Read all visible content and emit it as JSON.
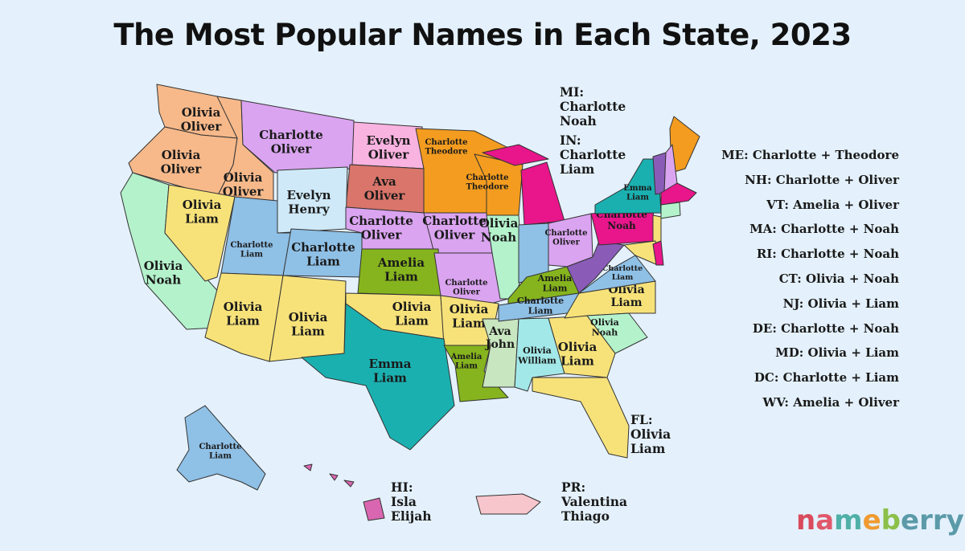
{
  "title": "The Most Popular Names in Each State, 2023",
  "colors": {
    "background": "#e4f1fc"
  },
  "states": [
    {
      "abbr": "WA",
      "lines": [
        "Olivia",
        "Oliver"
      ],
      "color": "#f7b98a"
    },
    {
      "abbr": "OR",
      "lines": [
        "Olivia",
        "Oliver"
      ],
      "color": "#f7b98a"
    },
    {
      "abbr": "ID",
      "lines": [
        "Olivia",
        "Oliver"
      ],
      "color": "#f7b98a"
    },
    {
      "abbr": "MT",
      "lines": [
        "Charlotte",
        "Oliver"
      ],
      "color": "#daa4f0"
    },
    {
      "abbr": "ND",
      "lines": [
        "Evelyn",
        "Oliver"
      ],
      "color": "#f9b3e0"
    },
    {
      "abbr": "SD",
      "lines": [
        "Ava",
        "Oliver"
      ],
      "color": "#d9756a"
    },
    {
      "abbr": "MN",
      "lines": [
        "Charlotte",
        "Theodore"
      ],
      "color": "#f39c1f"
    },
    {
      "abbr": "WI",
      "lines": [
        "Charlotte",
        "Theodore"
      ],
      "color": "#f39c1f"
    },
    {
      "abbr": "WY",
      "lines": [
        "Evelyn",
        "Henry"
      ],
      "color": "#cfe9f8"
    },
    {
      "abbr": "CA",
      "lines": [
        "Olivia",
        "Noah"
      ],
      "color": "#b4f2cc"
    },
    {
      "abbr": "NV",
      "lines": [
        "Olivia",
        "Liam"
      ],
      "color": "#f7e27a"
    },
    {
      "abbr": "UT",
      "lines": [
        "Charlotte",
        "Liam"
      ],
      "color": "#8fc0e6"
    },
    {
      "abbr": "CO",
      "lines": [
        "Charlotte",
        "Liam"
      ],
      "color": "#8fc0e6"
    },
    {
      "abbr": "NE",
      "lines": [
        "Charlotte",
        "Oliver"
      ],
      "color": "#daa4f0"
    },
    {
      "abbr": "IA",
      "lines": [
        "Charlotte",
        "Oliver"
      ],
      "color": "#daa4f0"
    },
    {
      "abbr": "KS",
      "lines": [
        "Amelia",
        "Liam"
      ],
      "color": "#86b41e"
    },
    {
      "abbr": "MO",
      "lines": [
        "Charlotte",
        "Oliver"
      ],
      "color": "#daa4f0"
    },
    {
      "abbr": "IL",
      "lines": [
        "Olivia",
        "Noah"
      ],
      "color": "#b4f2cc"
    },
    {
      "abbr": "MI",
      "lines": [],
      "color": "#e8158b"
    },
    {
      "abbr": "IN",
      "lines": [],
      "color": "#8fc0e6"
    },
    {
      "abbr": "OH",
      "lines": [
        "Charlotte",
        "Oliver"
      ],
      "color": "#daa4f0"
    },
    {
      "abbr": "AZ",
      "lines": [
        "Olivia",
        "Liam"
      ],
      "color": "#f7e27a"
    },
    {
      "abbr": "NM",
      "lines": [
        "Olivia",
        "Liam"
      ],
      "color": "#f7e27a"
    },
    {
      "abbr": "OK",
      "lines": [
        "Olivia",
        "Liam"
      ],
      "color": "#f7e27a"
    },
    {
      "abbr": "AR",
      "lines": [
        "Olivia",
        "Liam"
      ],
      "color": "#f7e27a"
    },
    {
      "abbr": "TX",
      "lines": [
        "Emma",
        "Liam"
      ],
      "color": "#1bb0b0"
    },
    {
      "abbr": "LA",
      "lines": [
        "Amelia",
        "Liam"
      ],
      "color": "#86b41e"
    },
    {
      "abbr": "MS",
      "lines": [
        "Ava",
        "John"
      ],
      "color": "#c8e6c0"
    },
    {
      "abbr": "AL",
      "lines": [
        "Olivia",
        "William"
      ],
      "color": "#a3e8e8"
    },
    {
      "abbr": "GA",
      "lines": [
        "Olivia",
        "Liam"
      ],
      "color": "#f7e27a"
    },
    {
      "abbr": "FL",
      "lines": [],
      "color": "#f7e27a"
    },
    {
      "abbr": "KY",
      "lines": [
        "Amelia",
        "Liam"
      ],
      "color": "#86b41e"
    },
    {
      "abbr": "TN",
      "lines": [
        "Charlotte",
        "Liam"
      ],
      "color": "#8fc0e6"
    },
    {
      "abbr": "NC",
      "lines": [
        "Olivia",
        "Liam"
      ],
      "color": "#f7e27a"
    },
    {
      "abbr": "SC",
      "lines": [
        "Olivia",
        "Noah"
      ],
      "color": "#b4f2cc"
    },
    {
      "abbr": "VA",
      "lines": [
        "Charlotte",
        "Liam"
      ],
      "color": "#8fc0e6"
    },
    {
      "abbr": "WV",
      "lines": [],
      "color": "#8a5cb8"
    },
    {
      "abbr": "PA",
      "lines": [
        "Charlotte",
        "Noah"
      ],
      "color": "#e8158b"
    },
    {
      "abbr": "NY",
      "lines": [
        "Emma",
        "Liam"
      ],
      "color": "#1bb0b0"
    },
    {
      "abbr": "ME",
      "lines": [],
      "color": "#f39c1f"
    },
    {
      "abbr": "VT",
      "lines": [],
      "color": "#8a5cb8"
    },
    {
      "abbr": "NH",
      "lines": [],
      "color": "#daa4f0"
    },
    {
      "abbr": "MA",
      "lines": [],
      "color": "#e8158b"
    },
    {
      "abbr": "CT",
      "lines": [],
      "color": "#b4f2cc"
    },
    {
      "abbr": "NJ",
      "lines": [],
      "color": "#f7e27a"
    },
    {
      "abbr": "MD",
      "lines": [],
      "color": "#f7e27a"
    },
    {
      "abbr": "DE",
      "lines": [],
      "color": "#e8158b"
    },
    {
      "abbr": "AK",
      "lines": [
        "Charlotte",
        "Liam"
      ],
      "color": "#8fc0e6"
    },
    {
      "abbr": "HI",
      "lines": [],
      "color": "#d966b0"
    },
    {
      "abbr": "PR",
      "lines": [],
      "color": "#f7c6cc"
    }
  ],
  "callouts": [
    {
      "abbr": "MI",
      "lines": [
        "MI:",
        "Charlotte",
        "Noah"
      ]
    },
    {
      "abbr": "IN",
      "lines": [
        "IN:",
        "Charlotte",
        "Liam"
      ]
    },
    {
      "abbr": "FL",
      "lines": [
        "FL:",
        "Olivia",
        "Liam"
      ]
    },
    {
      "abbr": "HI",
      "lines": [
        "HI:",
        "Isla",
        "Elijah"
      ]
    },
    {
      "abbr": "PR",
      "lines": [
        "PR:",
        "Valentina",
        "Thiago"
      ]
    }
  ],
  "legend": [
    "ME: Charlotte + Theodore",
    "NH: Charlotte + Oliver",
    "VT: Amelia + Oliver",
    "MA: Charlotte + Noah",
    "RI: Charlotte + Noah",
    "CT: Olivia + Noah",
    "NJ: Olivia + Liam",
    "DE: Charlotte + Noah",
    "MD: Olivia + Liam",
    "DC: Charlotte + Liam",
    "WV: Amelia + Oliver"
  ],
  "logo": {
    "text": "nameberry",
    "letter_colors": [
      "#d94a5c",
      "#e0586a",
      "#4fb0a8",
      "#f09a30",
      "#8cc04a",
      "#5b9aa8",
      "#5b9aa8",
      "#5b9aa8",
      "#5b9aa8"
    ]
  }
}
